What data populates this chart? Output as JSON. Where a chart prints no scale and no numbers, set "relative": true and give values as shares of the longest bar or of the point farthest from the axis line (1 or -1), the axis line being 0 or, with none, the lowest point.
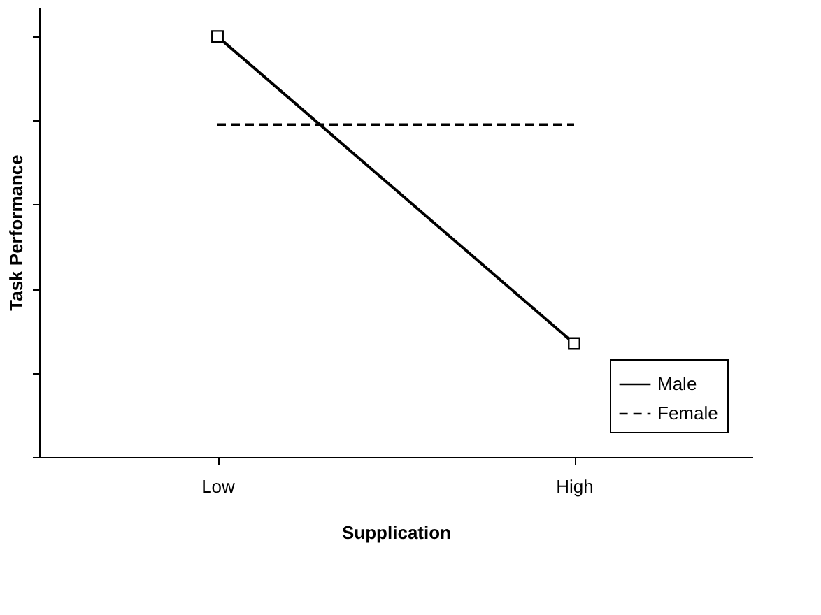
{
  "chart_data": {
    "type": "line",
    "relative": true,
    "xlabel": "Supplication",
    "ylabel": "Task Performance",
    "categories": [
      "Low",
      "High"
    ],
    "legend": "bottom right",
    "grid": false,
    "series": [
      {
        "name": "Male",
        "color": "#000000",
        "values": [
          1,
          0.27
        ],
        "marker": "square",
        "line_style": "solid"
      },
      {
        "name": "Female",
        "color": "#000000",
        "values": [
          0.79,
          0.79
        ],
        "marker": "none",
        "line_style": "dashed"
      }
    ]
  }
}
